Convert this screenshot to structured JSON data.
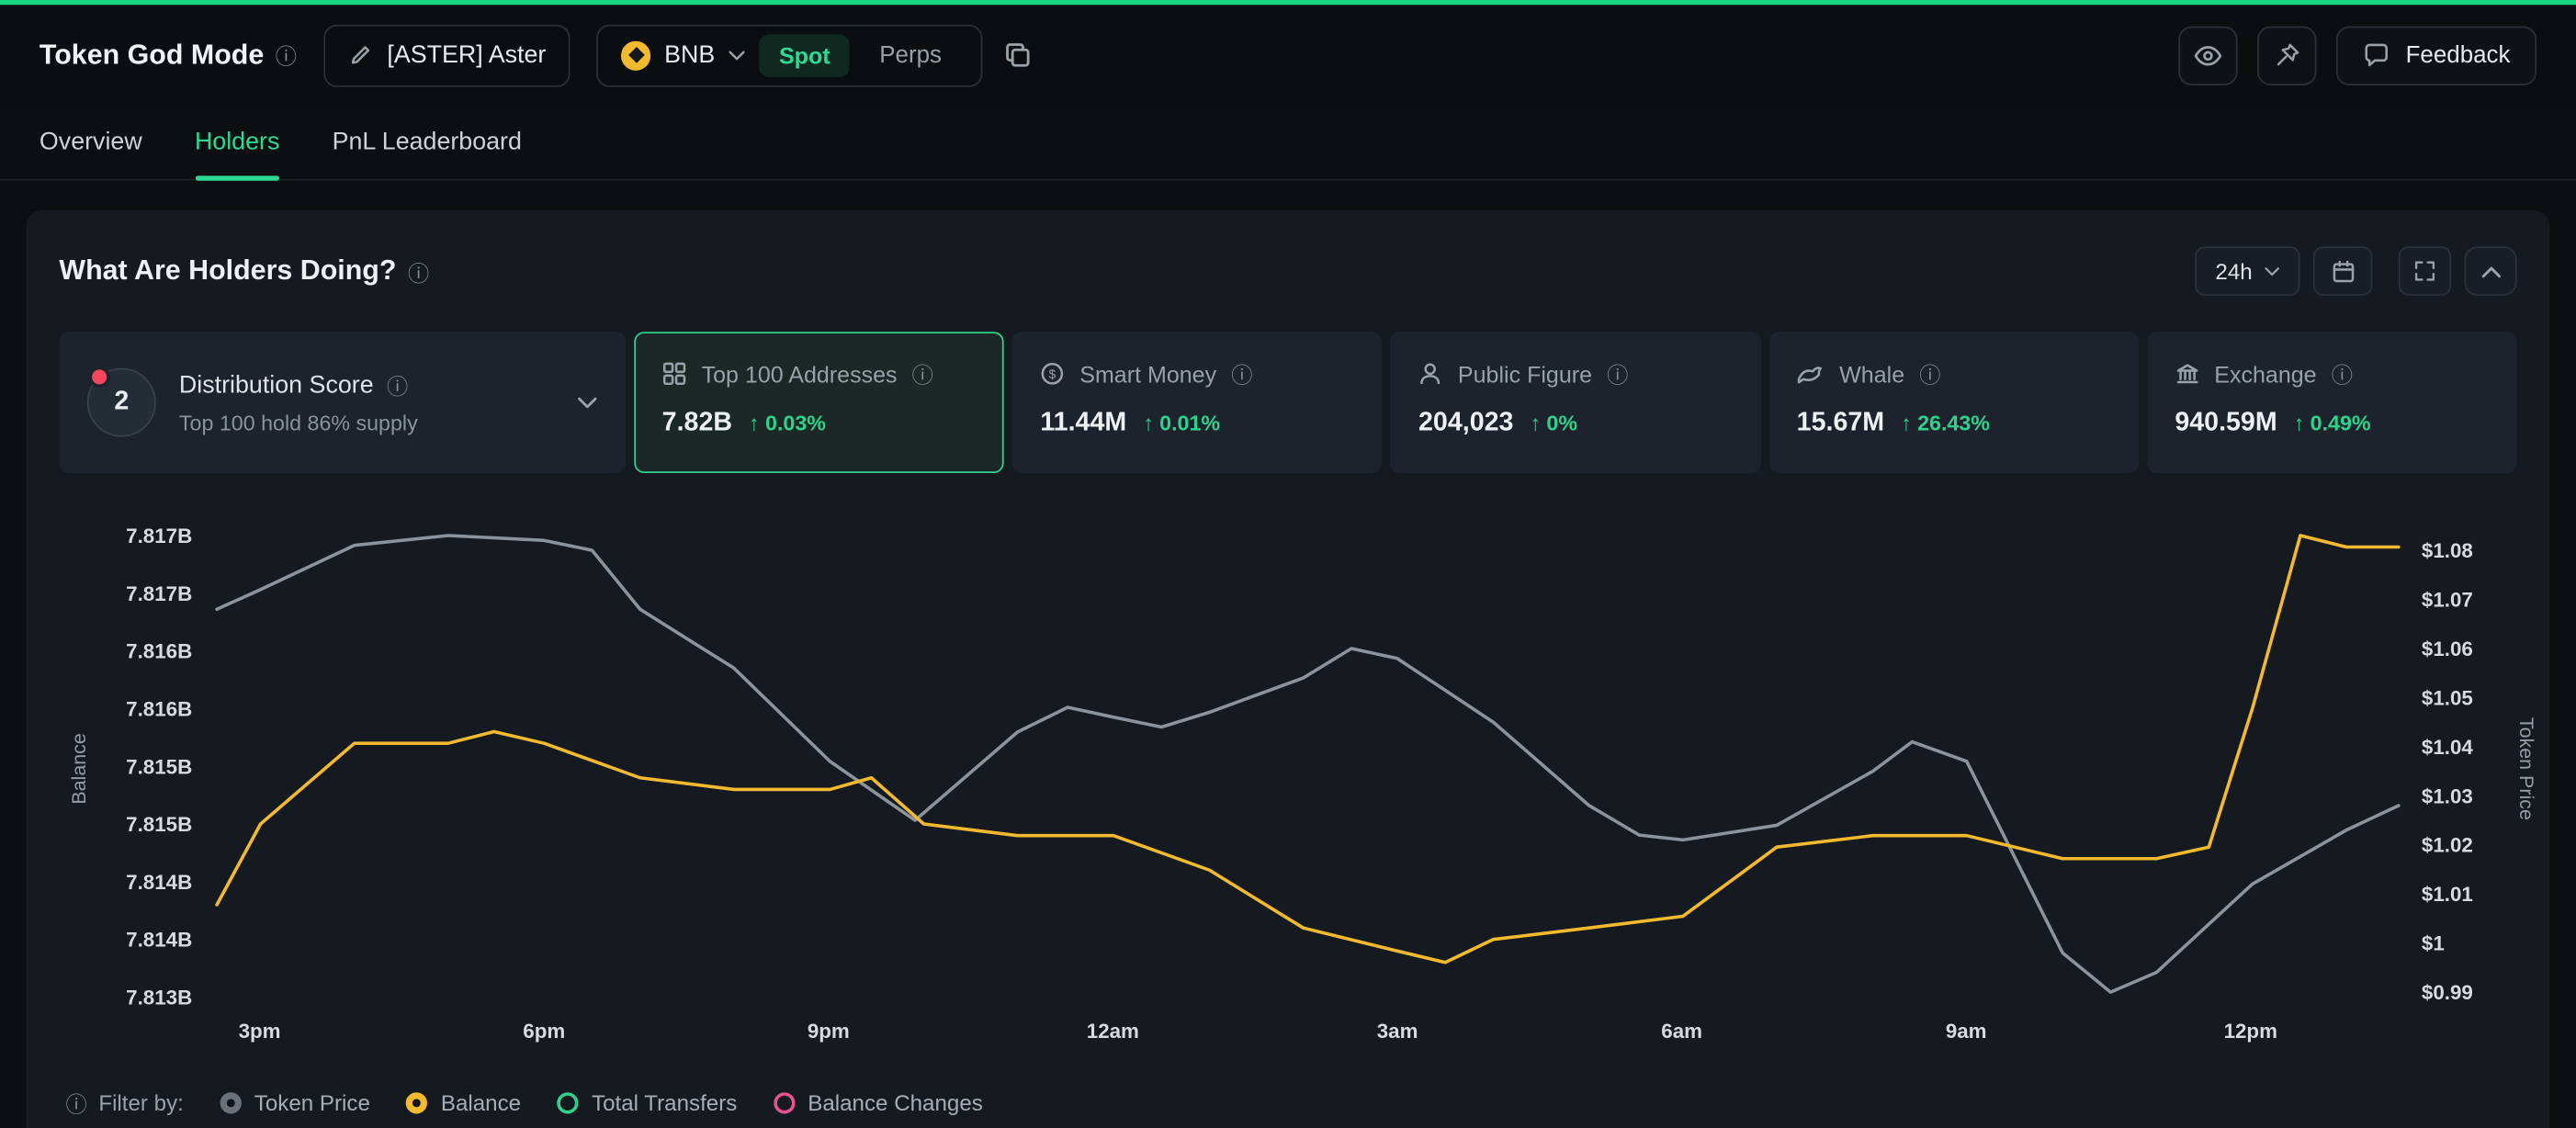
{
  "glyphs": {
    "info": "ⓘ"
  },
  "header": {
    "title": "Token God Mode",
    "token_name": "[ASTER] Aster",
    "chain": "BNB",
    "market_spot": "Spot",
    "market_perps": "Perps",
    "feedback": "Feedback"
  },
  "tabs": {
    "overview": "Overview",
    "holders": "Holders",
    "pnl": "PnL Leaderboard"
  },
  "panel": {
    "title": "What Are Holders Doing?",
    "timeframe": "24h"
  },
  "stats": {
    "distribution": {
      "score": "2",
      "label": "Distribution Score",
      "subtitle": "Top 100 hold 86% supply"
    },
    "cards": [
      {
        "label": "Top 100 Addresses",
        "value": "7.82B",
        "change": "↑ 0.03%",
        "selected": true
      },
      {
        "label": "Smart Money",
        "value": "11.44M",
        "change": "↑ 0.01%",
        "selected": false
      },
      {
        "label": "Public Figure",
        "value": "204,023",
        "change": "↑ 0%",
        "selected": false
      },
      {
        "label": "Whale",
        "value": "15.67M",
        "change": "↑ 26.43%",
        "selected": false
      },
      {
        "label": "Exchange",
        "value": "940.59M",
        "change": "↑ 0.49%",
        "selected": false
      }
    ]
  },
  "chart_data": {
    "type": "line",
    "title": "What Are Holders Doing?",
    "grid": false,
    "x_ticks": [
      "3pm",
      "6pm",
      "9pm",
      "12am",
      "3am",
      "6am",
      "9am",
      "12pm"
    ],
    "left_axis": {
      "label": "Balance",
      "min": 7.8135,
      "max": 7.8175,
      "ticks": [
        "7.817B",
        "7.817B",
        "7.816B",
        "7.816B",
        "7.815B",
        "7.815B",
        "7.814B",
        "7.814B",
        "7.813B"
      ]
    },
    "right_axis": {
      "label": "Token Price",
      "min": 0.99,
      "max": 1.08,
      "ticks": [
        "$1.08",
        "$1.07",
        "$1.06",
        "$1.05",
        "$1.04",
        "$1.03",
        "$1.02",
        "$1.01",
        "$1",
        "$0.99"
      ]
    },
    "series": [
      {
        "name": "Token Price",
        "axis": "right",
        "color": "#8b939c",
        "points": [
          [
            0.0,
            1.068
          ],
          [
            0.02,
            1.072
          ],
          [
            0.063,
            1.081
          ],
          [
            0.106,
            1.083
          ],
          [
            0.15,
            1.082
          ],
          [
            0.172,
            1.08
          ],
          [
            0.194,
            1.068
          ],
          [
            0.237,
            1.056
          ],
          [
            0.281,
            1.037
          ],
          [
            0.32,
            1.025
          ],
          [
            0.367,
            1.043
          ],
          [
            0.39,
            1.048
          ],
          [
            0.411,
            1.046
          ],
          [
            0.433,
            1.044
          ],
          [
            0.455,
            1.047
          ],
          [
            0.498,
            1.054
          ],
          [
            0.52,
            1.06
          ],
          [
            0.541,
            1.058
          ],
          [
            0.585,
            1.045
          ],
          [
            0.629,
            1.028
          ],
          [
            0.652,
            1.022
          ],
          [
            0.672,
            1.021
          ],
          [
            0.715,
            1.024
          ],
          [
            0.759,
            1.035
          ],
          [
            0.777,
            1.041
          ],
          [
            0.802,
            1.037
          ],
          [
            0.846,
            0.998
          ],
          [
            0.868,
            0.99
          ],
          [
            0.889,
            0.994
          ],
          [
            0.933,
            1.012
          ],
          [
            0.976,
            1.023
          ],
          [
            1.0,
            1.028
          ]
        ]
      },
      {
        "name": "Balance",
        "axis": "left",
        "color": "#f3ba2f",
        "points": [
          [
            0.0,
            7.8143
          ],
          [
            0.02,
            7.815
          ],
          [
            0.063,
            7.8157
          ],
          [
            0.106,
            7.8157
          ],
          [
            0.127,
            7.8158
          ],
          [
            0.15,
            7.8157
          ],
          [
            0.194,
            7.8154
          ],
          [
            0.237,
            7.8153
          ],
          [
            0.281,
            7.8153
          ],
          [
            0.3,
            7.8154
          ],
          [
            0.324,
            7.815
          ],
          [
            0.367,
            7.8149
          ],
          [
            0.411,
            7.8149
          ],
          [
            0.455,
            7.8146
          ],
          [
            0.498,
            7.8141
          ],
          [
            0.541,
            7.8139
          ],
          [
            0.563,
            7.8138
          ],
          [
            0.585,
            7.814
          ],
          [
            0.629,
            7.8141
          ],
          [
            0.672,
            7.8142
          ],
          [
            0.715,
            7.8148
          ],
          [
            0.759,
            7.8149
          ],
          [
            0.802,
            7.8149
          ],
          [
            0.846,
            7.8147
          ],
          [
            0.889,
            7.8147
          ],
          [
            0.913,
            7.8148
          ],
          [
            0.933,
            7.816
          ],
          [
            0.955,
            7.8175
          ],
          [
            0.976,
            7.8174
          ],
          [
            1.0,
            7.8174
          ]
        ]
      }
    ],
    "legend_position": "bottom"
  },
  "legend": {
    "label": "Filter by:",
    "items": [
      {
        "label": "Token Price",
        "color": "#6a7178",
        "state": "selected"
      },
      {
        "label": "Balance",
        "color": "#f3ba2f",
        "state": "selected"
      },
      {
        "label": "Total Transfers",
        "color": "#2fd18c",
        "state": "unselected"
      },
      {
        "label": "Balance Changes",
        "color": "#e8538f",
        "state": "unselected"
      }
    ]
  },
  "colors": {
    "accent_green": "#2ed993",
    "change_green": "#2fd18c",
    "balance_yellow": "#f3ba2f",
    "price_gray": "#8b939c",
    "alert_red": "#f6465d"
  }
}
